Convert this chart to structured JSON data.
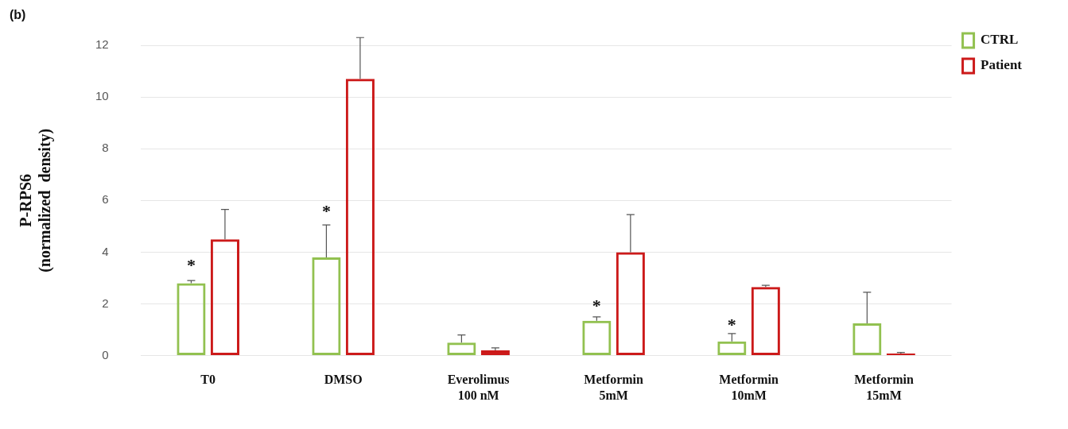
{
  "chart_data": {
    "type": "bar",
    "ylabel": "P-RPS6\n(normalized  density)",
    "categories": [
      "T0",
      "DMSO",
      "Everolimus\n100 nM",
      "Metformin\n5mM",
      "Metformin\n10mM",
      "Metformin\n15mM"
    ],
    "series": [
      {
        "name": "CTRL",
        "color": "#92c150",
        "values": [
          2.8,
          3.8,
          0.5,
          1.35,
          0.55,
          1.25
        ],
        "errors": [
          [
            2.8,
            2.9
          ],
          [
            3.8,
            5.05
          ],
          [
            0.5,
            0.8
          ],
          [
            1.35,
            1.5
          ],
          [
            0.55,
            0.85
          ],
          [
            1.25,
            2.45
          ]
        ]
      },
      {
        "name": "Patient",
        "color": "#cc1a1a",
        "values": [
          4.5,
          10.7,
          0.2,
          4.0,
          2.65,
          0.08
        ],
        "errors": [
          [
            4.5,
            5.65
          ],
          [
            10.7,
            12.3
          ],
          [
            0.2,
            0.3
          ],
          [
            4.0,
            5.45
          ],
          [
            2.65,
            2.72
          ],
          [
            0.08,
            0.12
          ]
        ]
      }
    ],
    "ylim": [
      0,
      12
    ],
    "yticks": [
      0,
      2,
      4,
      6,
      8,
      10,
      12
    ],
    "grid": "y",
    "legend": "top right",
    "annotations": [
      "(b)",
      {
        "text": "*",
        "x": "T0",
        "y": 3.6
      },
      {
        "text": "*",
        "x": "DMSO",
        "y": 5.7
      },
      {
        "text": "*",
        "x": "Metformin\n5mM",
        "y": 2.05
      },
      {
        "text": "*",
        "x": "Metformin\n10mM",
        "y": 1.3
      }
    ]
  }
}
